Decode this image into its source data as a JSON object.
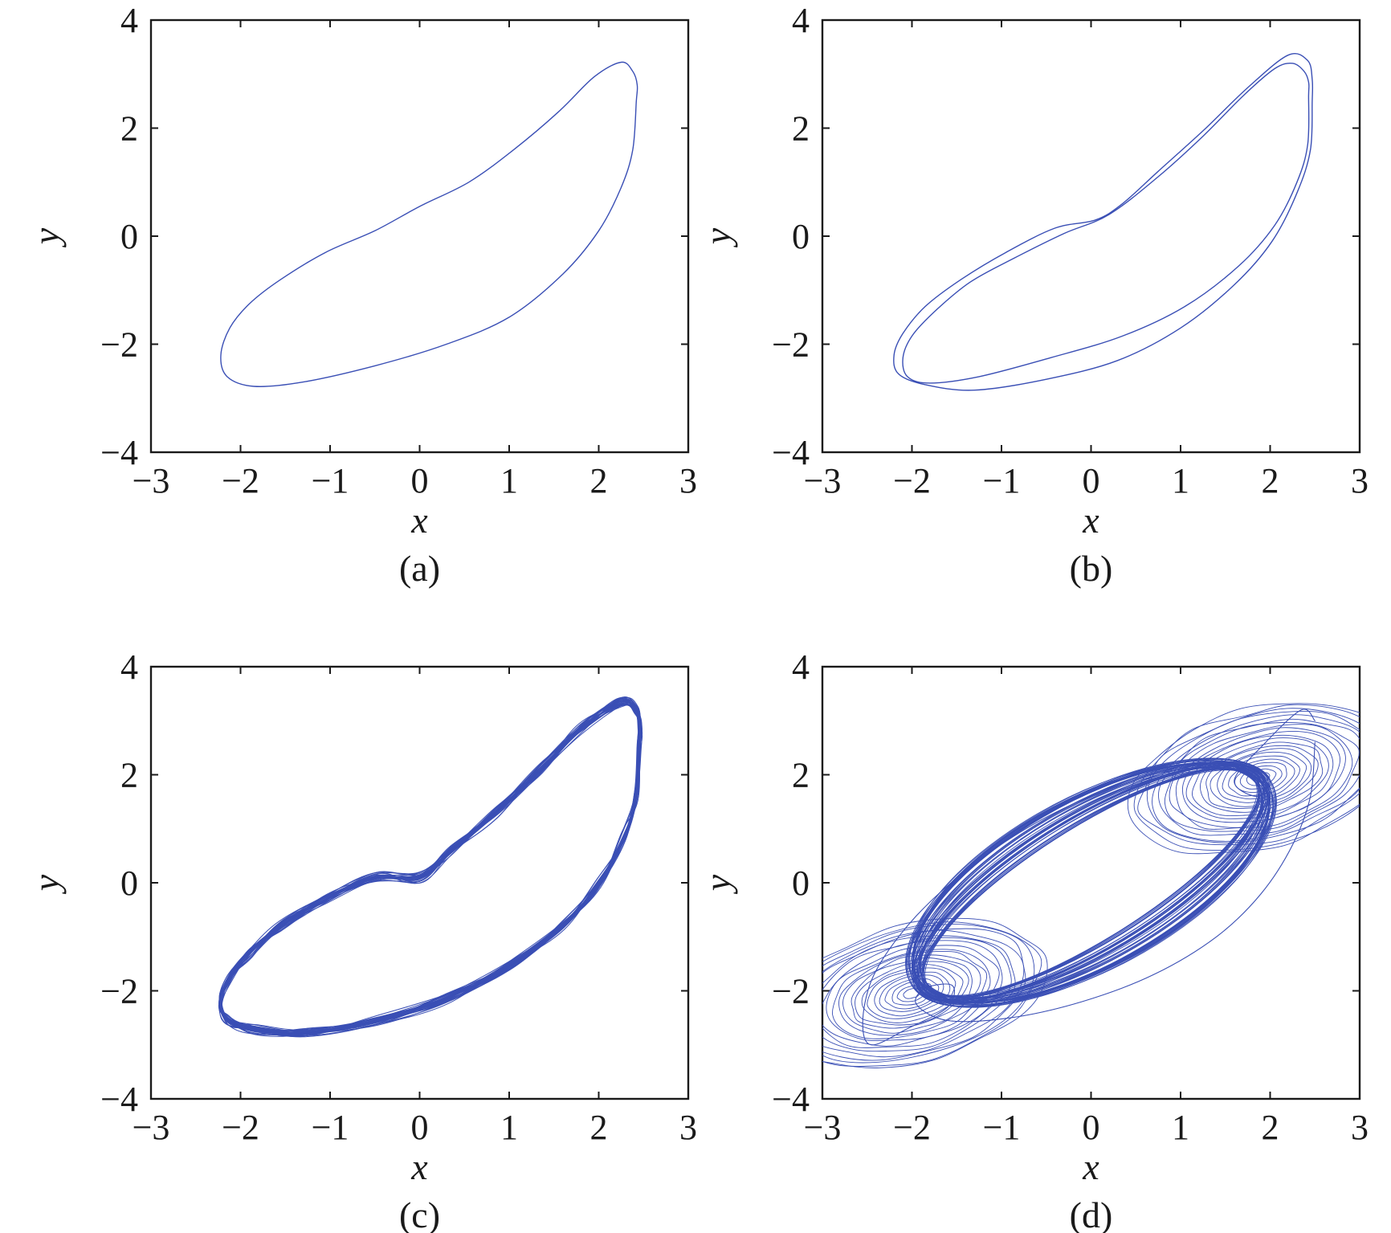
{
  "chart_data": [
    {
      "type": "line",
      "panel": "(a)",
      "xlabel": "x",
      "ylabel": "y",
      "xlim": [
        -3,
        3
      ],
      "ylim": [
        -4,
        4
      ],
      "xticks": [
        -3,
        -2,
        -1,
        0,
        1,
        2,
        3
      ],
      "yticks": [
        -4,
        -2,
        0,
        2,
        4
      ],
      "grid": false,
      "color": "#3a4fb5",
      "trajectory": "period-1 limit cycle",
      "series": [
        {
          "values": [
            [
              2.42,
              2.5
            ],
            [
              2.38,
              1.6
            ],
            [
              2.25,
              0.9
            ],
            [
              2.0,
              0.1
            ],
            [
              1.6,
              -0.7
            ],
            [
              1.0,
              -1.5
            ],
            [
              0.3,
              -2.0
            ],
            [
              -0.5,
              -2.4
            ],
            [
              -1.3,
              -2.7
            ],
            [
              -1.85,
              -2.78
            ],
            [
              -2.15,
              -2.6
            ],
            [
              -2.22,
              -2.2
            ],
            [
              -2.12,
              -1.7
            ],
            [
              -1.9,
              -1.25
            ],
            [
              -1.55,
              -0.8
            ],
            [
              -1.05,
              -0.3
            ],
            [
              -0.5,
              0.1
            ],
            [
              0.0,
              0.55
            ],
            [
              0.55,
              1.0
            ],
            [
              1.05,
              1.6
            ],
            [
              1.55,
              2.3
            ],
            [
              1.95,
              2.95
            ],
            [
              2.25,
              3.22
            ],
            [
              2.38,
              3.05
            ],
            [
              2.43,
              2.8
            ]
          ]
        }
      ]
    },
    {
      "type": "line",
      "panel": "(b)",
      "xlabel": "x",
      "ylabel": "y",
      "xlim": [
        -3,
        3
      ],
      "ylim": [
        -4,
        4
      ],
      "xticks": [
        -3,
        -2,
        -1,
        0,
        1,
        2,
        3
      ],
      "yticks": [
        -4,
        -2,
        0,
        2,
        4
      ],
      "grid": false,
      "color": "#3a4fb5",
      "trajectory": "period-2 limit cycle",
      "series": [
        {
          "values": [
            [
              2.47,
              2.5
            ],
            [
              2.45,
              1.6
            ],
            [
              2.3,
              0.8
            ],
            [
              2.02,
              -0.1
            ],
            [
              1.6,
              -0.9
            ],
            [
              1.0,
              -1.7
            ],
            [
              0.3,
              -2.3
            ],
            [
              -0.5,
              -2.65
            ],
            [
              -1.3,
              -2.85
            ],
            [
              -1.85,
              -2.75
            ],
            [
              -2.15,
              -2.55
            ],
            [
              -2.2,
              -2.2
            ],
            [
              -2.1,
              -1.8
            ],
            [
              -1.85,
              -1.3
            ],
            [
              -1.45,
              -0.8
            ],
            [
              -0.95,
              -0.3
            ],
            [
              -0.4,
              0.15
            ],
            [
              0.05,
              0.3
            ],
            [
              0.35,
              0.6
            ],
            [
              0.75,
              1.2
            ],
            [
              1.25,
              1.95
            ],
            [
              1.75,
              2.75
            ],
            [
              2.2,
              3.35
            ],
            [
              2.42,
              3.25
            ],
            [
              2.47,
              2.9
            ]
          ]
        },
        {
          "values": [
            [
              2.43,
              2.6
            ],
            [
              2.42,
              1.7
            ],
            [
              2.3,
              1.0
            ],
            [
              2.05,
              0.2
            ],
            [
              1.65,
              -0.55
            ],
            [
              1.05,
              -1.3
            ],
            [
              0.35,
              -1.85
            ],
            [
              -0.45,
              -2.25
            ],
            [
              -1.25,
              -2.6
            ],
            [
              -1.8,
              -2.72
            ],
            [
              -2.05,
              -2.6
            ],
            [
              -2.1,
              -2.25
            ],
            [
              -2.0,
              -1.85
            ],
            [
              -1.75,
              -1.4
            ],
            [
              -1.35,
              -0.85
            ],
            [
              -0.85,
              -0.4
            ],
            [
              -0.3,
              0.05
            ],
            [
              0.2,
              0.4
            ],
            [
              0.75,
              1.1
            ],
            [
              1.25,
              1.85
            ],
            [
              1.7,
              2.6
            ],
            [
              2.05,
              3.1
            ],
            [
              2.25,
              3.2
            ],
            [
              2.38,
              3.05
            ],
            [
              2.43,
              2.85
            ]
          ]
        }
      ]
    },
    {
      "type": "line",
      "panel": "(c)",
      "xlabel": "x",
      "ylabel": "y",
      "xlim": [
        -3,
        3
      ],
      "ylim": [
        -4,
        4
      ],
      "xticks": [
        -3,
        -2,
        -1,
        0,
        1,
        2,
        3
      ],
      "yticks": [
        -4,
        -2,
        0,
        2,
        4
      ],
      "grid": false,
      "color": "#3a4fb5",
      "trajectory": "dense single-scroll band",
      "series": [
        {
          "values": [
            [
              2.45,
              2.5
            ],
            [
              2.42,
              1.6
            ],
            [
              2.28,
              0.85
            ],
            [
              2.0,
              0.0
            ],
            [
              1.6,
              -0.8
            ],
            [
              1.0,
              -1.55
            ],
            [
              0.3,
              -2.15
            ],
            [
              -0.5,
              -2.55
            ],
            [
              -1.3,
              -2.78
            ],
            [
              -1.85,
              -2.72
            ],
            [
              -2.15,
              -2.55
            ],
            [
              -2.22,
              -2.2
            ],
            [
              -2.12,
              -1.75
            ],
            [
              -1.9,
              -1.3
            ],
            [
              -1.55,
              -0.8
            ],
            [
              -1.05,
              -0.3
            ],
            [
              -0.5,
              0.1
            ],
            [
              0.0,
              0.1
            ],
            [
              0.35,
              0.6
            ],
            [
              0.85,
              1.3
            ],
            [
              1.35,
              2.1
            ],
            [
              1.8,
              2.85
            ],
            [
              2.25,
              3.35
            ],
            [
              2.42,
              3.2
            ],
            [
              2.46,
              2.85
            ]
          ]
        }
      ]
    },
    {
      "type": "line",
      "panel": "(d)",
      "xlabel": "x",
      "ylabel": "y",
      "xlim": [
        -3,
        3
      ],
      "ylim": [
        -4,
        4
      ],
      "xticks": [
        -3,
        -2,
        -1,
        0,
        1,
        2,
        3
      ],
      "yticks": [
        -4,
        -2,
        0,
        2,
        4
      ],
      "grid": false,
      "color": "#3a4fb5",
      "trajectory": "double-scroll chaotic attractor",
      "series": [
        {
          "values": [
            [
              2.5,
              2.6
            ],
            [
              2.45,
              1.6
            ],
            [
              2.25,
              0.7
            ],
            [
              1.9,
              -0.2
            ],
            [
              1.4,
              -1.0
            ],
            [
              0.7,
              -1.7
            ],
            [
              -0.1,
              -2.2
            ],
            [
              -0.9,
              -2.5
            ],
            [
              -1.6,
              -2.55
            ],
            [
              -1.95,
              -2.25
            ],
            [
              -1.85,
              -1.95
            ],
            [
              -1.55,
              -1.9
            ],
            [
              -1.6,
              -2.3
            ],
            [
              -2.05,
              -2.7
            ],
            [
              -2.45,
              -3.0
            ],
            [
              -2.55,
              -2.6
            ],
            [
              -2.45,
              -1.8
            ],
            [
              -2.15,
              -1.0
            ],
            [
              -1.7,
              -0.2
            ],
            [
              -1.1,
              0.6
            ],
            [
              -0.4,
              1.3
            ],
            [
              0.4,
              1.85
            ],
            [
              1.2,
              2.2
            ],
            [
              1.75,
              2.2
            ],
            [
              2.0,
              1.9
            ],
            [
              1.85,
              1.6
            ],
            [
              1.6,
              1.9
            ],
            [
              1.95,
              2.6
            ],
            [
              2.35,
              3.2
            ],
            [
              2.5,
              3.0
            ]
          ]
        }
      ]
    }
  ],
  "captions": [
    "(a)",
    "(b)",
    "(c)",
    "(d)"
  ]
}
